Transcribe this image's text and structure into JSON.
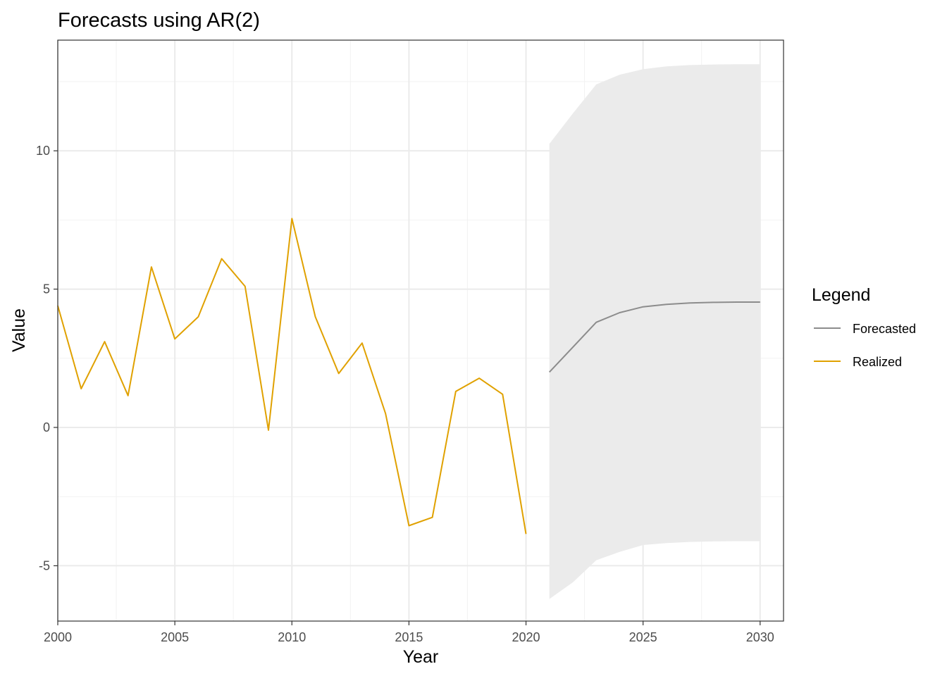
{
  "chart_data": {
    "type": "line",
    "title": "Forecasts using AR(2)",
    "xlabel": "Year",
    "ylabel": "Value",
    "xlim": [
      2000,
      2031
    ],
    "ylim": [
      -7.0,
      14.0
    ],
    "x_ticks": [
      2000,
      2005,
      2010,
      2015,
      2020,
      2025,
      2030
    ],
    "x_tick_labels": [
      "2000",
      "2005",
      "2010",
      "2015",
      "2020",
      "2025",
      "2030"
    ],
    "y_ticks": [
      -5,
      0,
      5,
      10
    ],
    "y_tick_labels": [
      "-5",
      "0",
      "5",
      "10"
    ],
    "grid": true,
    "legend": {
      "title": "Legend",
      "placement": "right",
      "entries": [
        {
          "label": "Forecasted",
          "color": "#8c8c8c"
        },
        {
          "label": "Realized",
          "color": "#e0a100"
        }
      ]
    },
    "series": [
      {
        "name": "Realized",
        "color": "#e0a100",
        "x": [
          2000,
          2001,
          2002,
          2003,
          2004,
          2005,
          2006,
          2007,
          2008,
          2009,
          2010,
          2011,
          2012,
          2013,
          2014,
          2015,
          2016,
          2017,
          2018,
          2019,
          2020
        ],
        "y": [
          4.4,
          1.4,
          3.1,
          1.15,
          5.8,
          3.2,
          4.0,
          6.1,
          5.1,
          -0.1,
          7.55,
          4.0,
          1.95,
          3.05,
          0.5,
          -3.55,
          -3.25,
          1.3,
          1.78,
          1.2,
          -3.85
        ]
      },
      {
        "name": "Forecasted",
        "color": "#8c8c8c",
        "x": [
          2021,
          2022,
          2023,
          2024,
          2025,
          2026,
          2027,
          2028,
          2029,
          2030
        ],
        "y": [
          2.0,
          2.9,
          3.8,
          4.15,
          4.36,
          4.45,
          4.5,
          4.52,
          4.53,
          4.53
        ]
      }
    ],
    "interval": {
      "color": "#ebebeb",
      "x": [
        2021,
        2022,
        2023,
        2024,
        2025,
        2026,
        2027,
        2028,
        2029,
        2030
      ],
      "upper": [
        10.25,
        11.35,
        12.4,
        12.75,
        12.95,
        13.05,
        13.1,
        13.12,
        13.13,
        13.13
      ],
      "lower": [
        -6.2,
        -5.6,
        -4.8,
        -4.5,
        -4.25,
        -4.18,
        -4.14,
        -4.12,
        -4.11,
        -4.11
      ]
    }
  }
}
